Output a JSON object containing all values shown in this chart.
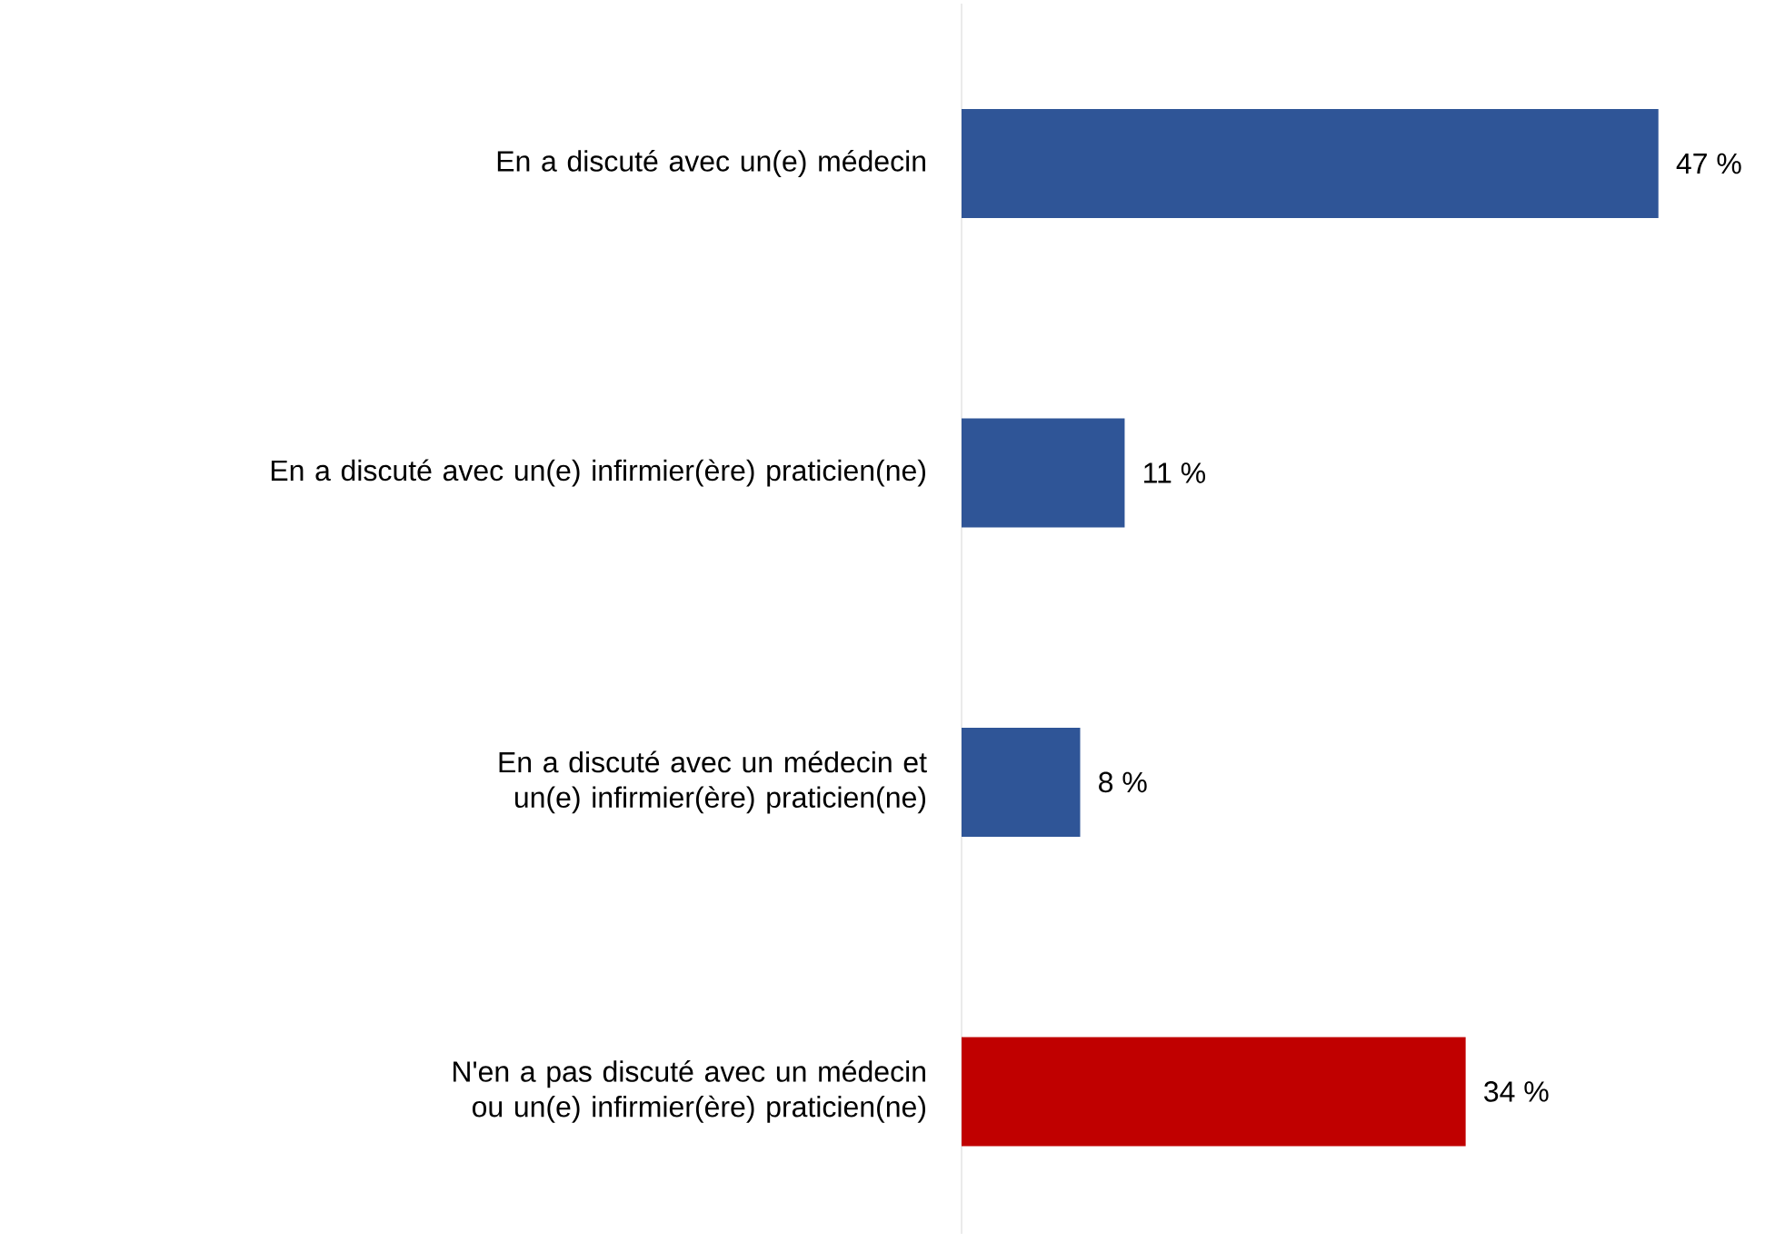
{
  "chart_data": {
    "type": "bar",
    "orientation": "horizontal",
    "categories": [
      "En a discuté avec un(e) médecin",
      "En a discuté avec un(e) infirmier(ère) praticien(ne)",
      "En a discuté avec un médecin et un(e) infirmier(ère) praticien(ne)",
      "N'en a pas discuté avec un médecin ou un(e) infirmier(ère) praticien(ne)"
    ],
    "values": [
      47,
      11,
      8,
      34
    ],
    "colors": [
      "#2f5597",
      "#2f5597",
      "#2f5597",
      "#c00000"
    ],
    "value_labels": [
      "47 %",
      "11 %",
      "8 %",
      "34 %"
    ]
  }
}
